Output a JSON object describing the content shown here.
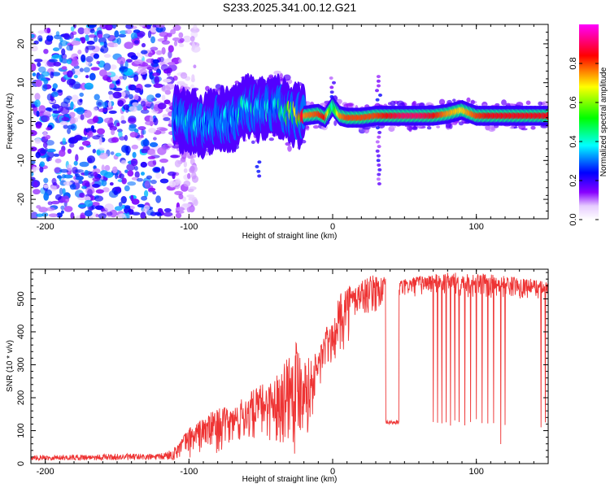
{
  "chart_data": [
    {
      "type": "heatmap",
      "title": "S233.2025.341.00.12.G21",
      "xlabel": "Height of straight line (km)",
      "ylabel": "Frequency (Hz)",
      "xlim": [
        -210,
        150
      ],
      "ylim": [
        -25,
        25
      ],
      "xticks": [
        -200,
        -100,
        0,
        100
      ],
      "yticks": [
        -20,
        -10,
        0,
        10,
        20
      ],
      "colorbar": {
        "label": "Normalized spectral amplitude",
        "range": [
          0,
          1
        ],
        "ticks": [
          "0.0",
          "0.2",
          "0.4",
          "0.6",
          "0.8"
        ],
        "tick_values": [
          0,
          0.2,
          0.4,
          0.6,
          0.8
        ],
        "colors": [
          "#ffffff",
          "#8800ff",
          "#0000ff",
          "#00ffff",
          "#00ff00",
          "#ffff00",
          "#ff0000",
          "#ff00ff"
        ]
      },
      "signal_trace": {
        "x": [
          -110,
          -100,
          -90,
          -80,
          -70,
          -60,
          -50,
          -40,
          -30,
          -20,
          -10,
          -5,
          0,
          5,
          10,
          20,
          30,
          40,
          50,
          60,
          70,
          80,
          90,
          100,
          110,
          120,
          130,
          140,
          150
        ],
        "freq": [
          1,
          0,
          -1,
          1,
          0,
          4,
          3,
          4,
          2,
          1.5,
          2,
          1,
          4,
          1.5,
          1,
          1,
          1.5,
          1.5,
          1.5,
          1.5,
          1.5,
          2,
          3,
          1.5,
          1.5,
          1.5,
          1.5,
          1.5,
          1.5
        ],
        "peak_amplitude": [
          0.3,
          0.35,
          0.3,
          0.3,
          0.3,
          0.35,
          0.35,
          0.3,
          0.5,
          0.75,
          0.8,
          0.85,
          0.4,
          0.75,
          0.8,
          0.8,
          0.8,
          0.85,
          0.9,
          0.9,
          0.85,
          0.75,
          0.7,
          0.8,
          0.85,
          0.85,
          0.85,
          0.85,
          0.85
        ]
      },
      "noise_region_x": [
        -210,
        -110
      ],
      "noise_amplitude": 0.3
    },
    {
      "type": "line",
      "xlabel": "Height of straight line (km)",
      "ylabel": "SNR (10 * v/v)",
      "xlim": [
        -210,
        150
      ],
      "ylim": [
        0,
        590
      ],
      "xticks": [
        -200,
        -100,
        0,
        100
      ],
      "yticks": [
        0,
        100,
        200,
        300,
        400,
        500
      ],
      "line_color": "#ee3333",
      "envelope": {
        "x": [
          -210,
          -150,
          -120,
          -110,
          -100,
          -90,
          -80,
          -70,
          -60,
          -50,
          -40,
          -30,
          -25,
          -20,
          -15,
          -10,
          -5,
          0,
          5,
          10,
          15,
          20,
          30,
          40,
          50,
          60,
          70,
          80,
          90,
          100,
          110,
          120,
          130,
          140,
          150
        ],
        "min": [
          10,
          10,
          10,
          10,
          15,
          25,
          30,
          40,
          50,
          60,
          60,
          40,
          10,
          80,
          100,
          200,
          250,
          300,
          320,
          350,
          420,
          440,
          450,
          470,
          500,
          505,
          510,
          500,
          500,
          500,
          500,
          500,
          500,
          500,
          490
        ],
        "max": [
          25,
          30,
          30,
          50,
          110,
          140,
          170,
          170,
          210,
          240,
          260,
          350,
          390,
          330,
          320,
          350,
          420,
          420,
          520,
          550,
          540,
          560,
          575,
          560,
          560,
          570,
          575,
          580,
          580,
          575,
          575,
          570,
          565,
          560,
          550
        ]
      },
      "dropouts": [
        {
          "x_start": 37,
          "x_end": 46,
          "value": 125
        },
        {
          "x": 70,
          "value": 130
        },
        {
          "x": 73,
          "value": 125
        },
        {
          "x": 76,
          "value": 120
        },
        {
          "x": 79,
          "value": 125
        },
        {
          "x": 82,
          "value": 120
        },
        {
          "x": 85,
          "value": 130
        },
        {
          "x": 88,
          "value": 125
        },
        {
          "x": 92,
          "value": 120
        },
        {
          "x": 96,
          "value": 125
        },
        {
          "x": 100,
          "value": 130
        },
        {
          "x": 104,
          "value": 120
        },
        {
          "x": 108,
          "value": 125
        },
        {
          "x": 112,
          "value": 120
        },
        {
          "x": 117,
          "value": 55
        },
        {
          "x": 120,
          "value": 120
        },
        {
          "x": 145,
          "value": 110
        },
        {
          "x": 148,
          "value": 120
        }
      ]
    }
  ]
}
